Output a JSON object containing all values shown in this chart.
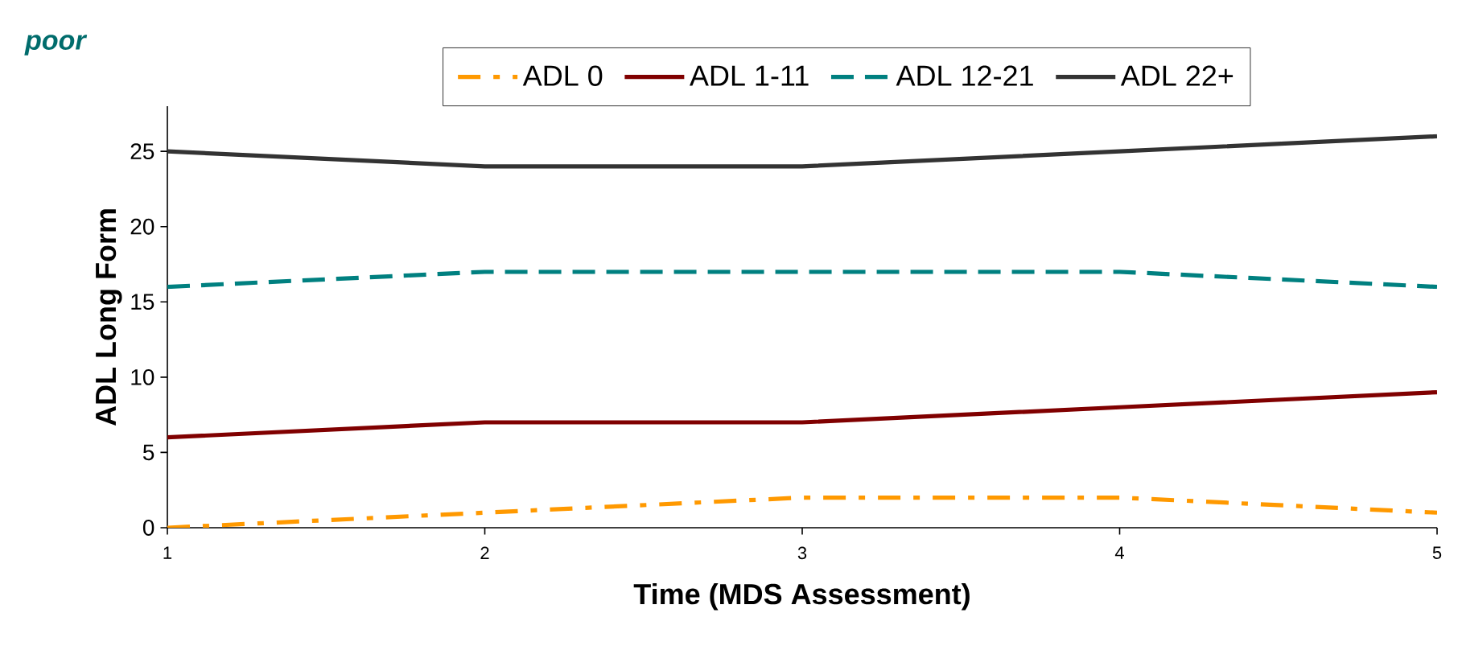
{
  "chart_data": {
    "type": "line",
    "xlabel": "Time (MDS Assessment)",
    "ylabel": "ADL Long Form",
    "annotations": [
      "poor"
    ],
    "x": [
      1,
      2,
      3,
      4,
      5
    ],
    "series": [
      {
        "name": "ADL 0",
        "color": "#ff9900",
        "line_style": "dashdot",
        "values": [
          0,
          1,
          2,
          2,
          1
        ]
      },
      {
        "name": "ADL 1-11",
        "color": "#800000",
        "line_style": "solid",
        "values": [
          6,
          7,
          7,
          8,
          9
        ]
      },
      {
        "name": "ADL 12-21",
        "color": "#008080",
        "line_style": "dashed",
        "values": [
          16,
          17,
          17,
          17,
          16
        ]
      },
      {
        "name": "ADL 22+",
        "color": "#333333",
        "line_style": "solid",
        "values": [
          25,
          24,
          24,
          25,
          26
        ]
      }
    ],
    "xlim": [
      1,
      5
    ],
    "ylim": [
      0,
      28
    ],
    "xticks": [
      1,
      2,
      3,
      4,
      5
    ],
    "yticks": [
      0,
      5,
      10,
      15,
      20,
      25
    ],
    "grid": false,
    "legend": "top",
    "marker": "none"
  }
}
